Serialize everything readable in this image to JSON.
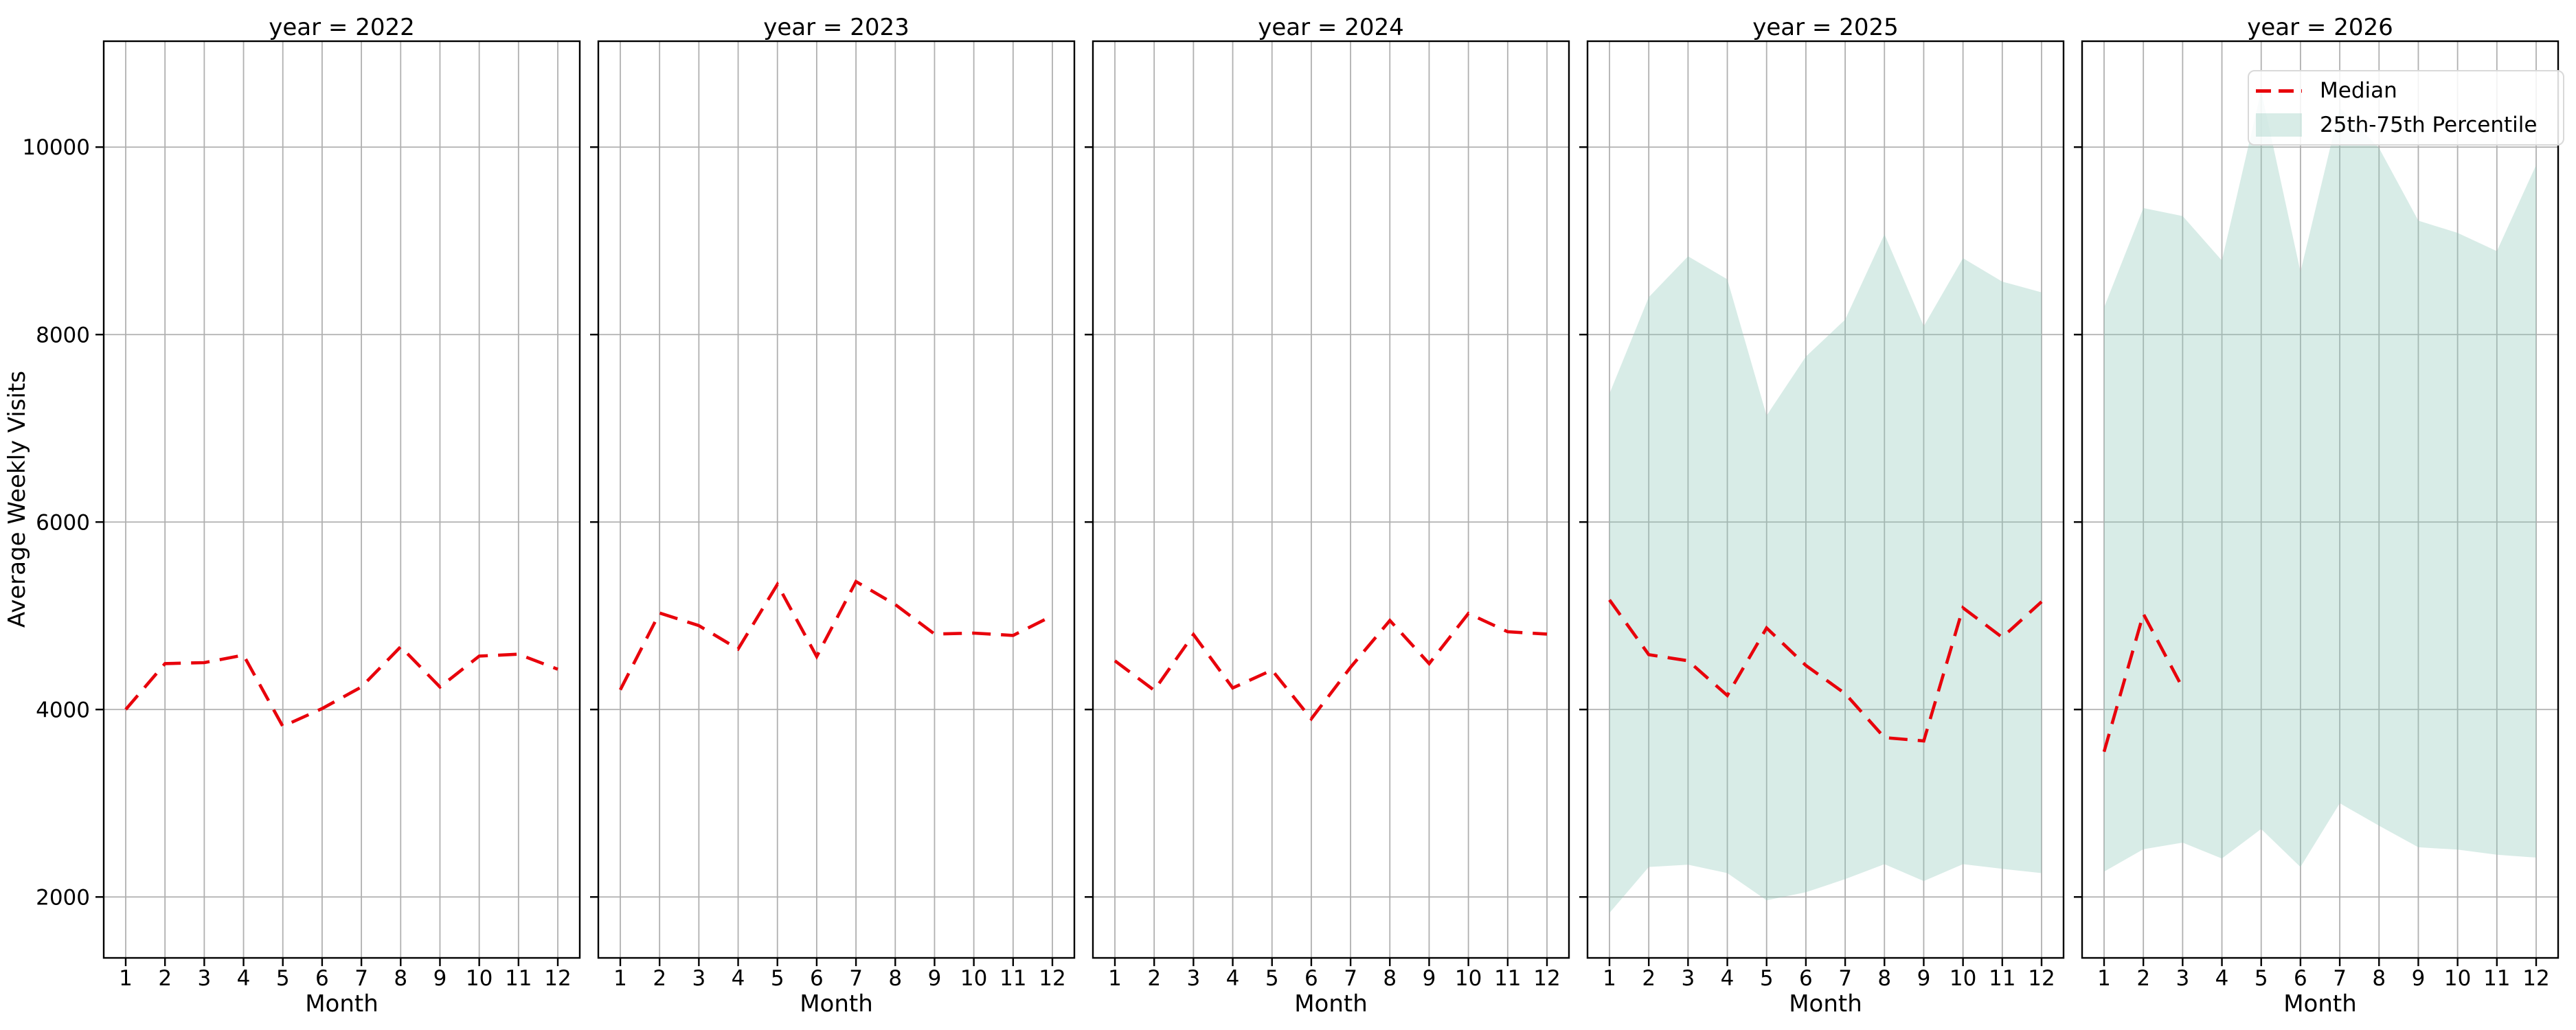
{
  "chart_data": {
    "type": "line",
    "ylabel": "Average Weekly Visits",
    "xlabel": "Month",
    "x": [
      1,
      2,
      3,
      4,
      5,
      6,
      7,
      8,
      9,
      10,
      11,
      12
    ],
    "yticks": [
      2000,
      4000,
      6000,
      8000,
      10000
    ],
    "ylim": [
      1350,
      11130
    ],
    "grid": true,
    "legend": {
      "position": "upper-right-last-facet",
      "entries": [
        "Median",
        "25th-75th Percentile"
      ]
    },
    "style": {
      "median_color": "#e8000b",
      "band_fill_base": "#8fc9ba",
      "band_alpha": 0.35,
      "grid_color": "#b0b0b0",
      "spine_color": "#000000"
    },
    "facets": [
      {
        "title": "year = 2022",
        "median": [
          4000,
          4490,
          4500,
          4580,
          3820,
          4010,
          4240,
          4670,
          4240,
          4570,
          4590,
          4430
        ],
        "p25": null,
        "p75": null
      },
      {
        "title": "year = 2023",
        "median": [
          4210,
          5030,
          4895,
          4645,
          5335,
          4565,
          5365,
          5120,
          4805,
          4815,
          4790,
          5000
        ],
        "p25": null,
        "p75": null
      },
      {
        "title": "year = 2024",
        "median": [
          4520,
          4205,
          4800,
          4230,
          4420,
          3900,
          4450,
          4950,
          4490,
          5025,
          4830,
          4805
        ],
        "p25": null,
        "p75": null
      },
      {
        "title": "year = 2025",
        "median": [
          5170,
          4585,
          4520,
          4150,
          4870,
          4470,
          4170,
          3700,
          3665,
          5085,
          4770,
          5150
        ],
        "p25": [
          1830,
          2320,
          2345,
          2255,
          1965,
          2050,
          2190,
          2350,
          2170,
          2350,
          2300,
          2255
        ],
        "p75": [
          7370,
          8400,
          8835,
          8590,
          7135,
          7765,
          8160,
          9070,
          8090,
          8815,
          8565,
          8450
        ]
      },
      {
        "title": "year = 2026",
        "median": [
          3550,
          5020,
          4230,
          null,
          null,
          null,
          null,
          null,
          null,
          null,
          null,
          null
        ],
        "p25": [
          2270,
          2510,
          2580,
          2410,
          2725,
          2320,
          3000,
          2760,
          2530,
          2505,
          2450,
          2420
        ],
        "p75": [
          8290,
          9350,
          9265,
          8790,
          10600,
          8670,
          10420,
          9990,
          9215,
          9085,
          8890,
          9810
        ]
      }
    ]
  }
}
